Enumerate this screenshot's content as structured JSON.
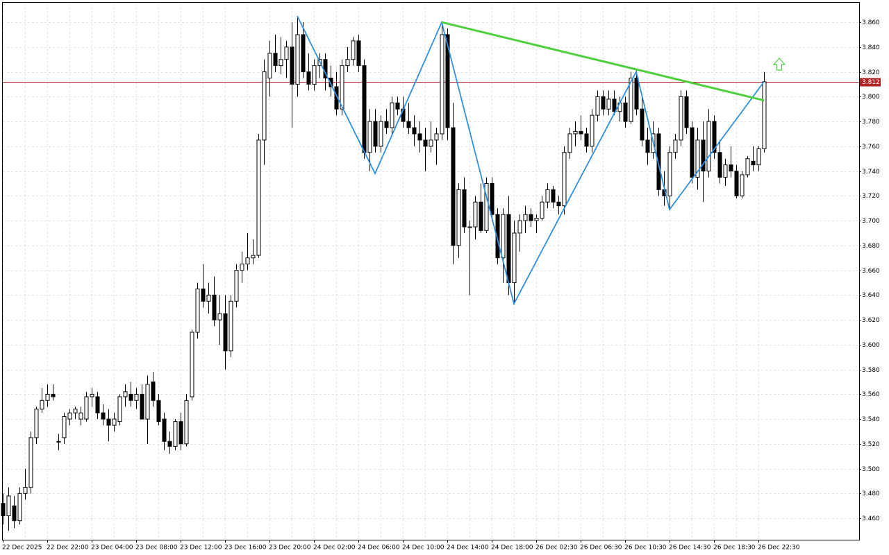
{
  "chart_data": {
    "type": "candlestick",
    "candles": [
      [
        3.472,
        3.48,
        3.455,
        3.462
      ],
      [
        3.462,
        3.485,
        3.45,
        3.478
      ],
      [
        3.47,
        3.478,
        3.452,
        3.458
      ],
      [
        3.458,
        3.485,
        3.455,
        3.48
      ],
      [
        3.48,
        3.5,
        3.475,
        3.485
      ],
      [
        3.485,
        3.53,
        3.48,
        3.525
      ],
      [
        3.525,
        3.55,
        3.52,
        3.548
      ],
      [
        3.548,
        3.565,
        3.545,
        3.555
      ],
      [
        3.555,
        3.568,
        3.55,
        3.56
      ],
      [
        3.56,
        3.568,
        3.555,
        3.558
      ],
      [
        3.522,
        3.528,
        3.515,
        3.522
      ],
      [
        3.525,
        3.545,
        3.52,
        3.542
      ],
      [
        3.54,
        3.548,
        3.535,
        3.545
      ],
      [
        3.545,
        3.55,
        3.54,
        3.548
      ],
      [
        3.54,
        3.55,
        3.535,
        3.545
      ],
      [
        3.54,
        3.562,
        3.538,
        3.558
      ],
      [
        3.558,
        3.565,
        3.55,
        3.56
      ],
      [
        3.558,
        3.562,
        3.54,
        3.545
      ],
      [
        3.545,
        3.552,
        3.535,
        3.54
      ],
      [
        3.54,
        3.548,
        3.522,
        3.535
      ],
      [
        3.535,
        3.545,
        3.53,
        3.54
      ],
      [
        3.538,
        3.56,
        3.535,
        3.558
      ],
      [
        3.558,
        3.568,
        3.55,
        3.562
      ],
      [
        3.56,
        3.57,
        3.55,
        3.555
      ],
      [
        3.555,
        3.565,
        3.548,
        3.56
      ],
      [
        3.56,
        3.568,
        3.54,
        3.54
      ],
      [
        3.54,
        3.575,
        3.52,
        3.568
      ],
      [
        3.57,
        3.578,
        3.55,
        3.555
      ],
      [
        3.555,
        3.56,
        3.535,
        3.538
      ],
      [
        3.54,
        3.545,
        3.515,
        3.522
      ],
      [
        3.522,
        3.53,
        3.512,
        3.518
      ],
      [
        3.518,
        3.54,
        3.515,
        3.538
      ],
      [
        3.538,
        3.545,
        3.515,
        3.52
      ],
      [
        3.52,
        3.56,
        3.518,
        3.555
      ],
      [
        3.558,
        3.612,
        3.555,
        3.61
      ],
      [
        3.61,
        3.65,
        3.605,
        3.645
      ],
      [
        3.645,
        3.665,
        3.63,
        3.635
      ],
      [
        3.635,
        3.65,
        3.625,
        3.64
      ],
      [
        3.64,
        3.655,
        3.615,
        3.62
      ],
      [
        3.62,
        3.64,
        3.6,
        3.625
      ],
      [
        3.625,
        3.64,
        3.58,
        3.595
      ],
      [
        3.595,
        3.64,
        3.59,
        3.635
      ],
      [
        3.635,
        3.665,
        3.63,
        3.66
      ],
      [
        3.66,
        3.675,
        3.65,
        3.665
      ],
      [
        3.665,
        3.69,
        3.66,
        3.67
      ],
      [
        3.67,
        3.685,
        3.665,
        3.672
      ],
      [
        3.672,
        3.77,
        3.67,
        3.765
      ],
      [
        3.765,
        3.83,
        3.745,
        3.82
      ],
      [
        3.815,
        3.845,
        3.8,
        3.835
      ],
      [
        3.835,
        3.85,
        3.82,
        3.825
      ],
      [
        3.825,
        3.848,
        3.818,
        3.83
      ],
      [
        3.83,
        3.845,
        3.815,
        3.84
      ],
      [
        3.84,
        3.86,
        3.775,
        3.81
      ],
      [
        3.81,
        3.865,
        3.8,
        3.85
      ],
      [
        3.85,
        3.86,
        3.815,
        3.82
      ],
      [
        3.82,
        3.835,
        3.805,
        3.81
      ],
      [
        3.81,
        3.83,
        3.805,
        3.825
      ],
      [
        3.825,
        3.835,
        3.815,
        3.83
      ],
      [
        3.83,
        3.835,
        3.805,
        3.815
      ],
      [
        3.815,
        3.825,
        3.8,
        3.808
      ],
      [
        3.808,
        3.82,
        3.785,
        3.79
      ],
      [
        3.79,
        3.83,
        3.785,
        3.825
      ],
      [
        3.825,
        3.84,
        3.82,
        3.83
      ],
      [
        3.83,
        3.848,
        3.825,
        3.845
      ],
      [
        3.845,
        3.85,
        3.82,
        3.825
      ],
      [
        3.825,
        3.83,
        3.75,
        3.755
      ],
      [
        3.755,
        3.79,
        3.74,
        3.78
      ],
      [
        3.78,
        3.79,
        3.755,
        3.76
      ],
      [
        3.76,
        3.785,
        3.755,
        3.78
      ],
      [
        3.78,
        3.79,
        3.77,
        3.775
      ],
      [
        3.775,
        3.8,
        3.77,
        3.795
      ],
      [
        3.795,
        3.8,
        3.785,
        3.79
      ],
      [
        3.79,
        3.8,
        3.775,
        3.78
      ],
      [
        3.78,
        3.795,
        3.77,
        3.775
      ],
      [
        3.775,
        3.785,
        3.76,
        3.77
      ],
      [
        3.77,
        3.78,
        3.755,
        3.765
      ],
      [
        3.765,
        3.775,
        3.74,
        3.76
      ],
      [
        3.76,
        3.78,
        3.755,
        3.765
      ],
      [
        3.765,
        3.775,
        3.745,
        3.77
      ],
      [
        3.77,
        3.86,
        3.765,
        3.85
      ],
      [
        3.85,
        3.855,
        3.765,
        3.775
      ],
      [
        3.775,
        3.795,
        3.665,
        3.68
      ],
      [
        3.68,
        3.73,
        3.67,
        3.725
      ],
      [
        3.725,
        3.735,
        3.69,
        3.695
      ],
      [
        3.695,
        3.7,
        3.64,
        3.695
      ],
      [
        3.695,
        3.72,
        3.685,
        3.715
      ],
      [
        3.715,
        3.73,
        3.69,
        3.692
      ],
      [
        3.692,
        3.735,
        3.69,
        3.73
      ],
      [
        3.73,
        3.735,
        3.7,
        3.705
      ],
      [
        3.705,
        3.71,
        3.665,
        3.67
      ],
      [
        3.67,
        3.71,
        3.65,
        3.705
      ],
      [
        3.705,
        3.72,
        3.64,
        3.65
      ],
      [
        3.65,
        3.7,
        3.633,
        3.69
      ],
      [
        3.69,
        3.705,
        3.675,
        3.7
      ],
      [
        3.7,
        3.712,
        3.69,
        3.705
      ],
      [
        3.705,
        3.71,
        3.695,
        3.7
      ],
      [
        3.7,
        3.705,
        3.69,
        3.702
      ],
      [
        3.702,
        3.72,
        3.7,
        3.715
      ],
      [
        3.715,
        3.73,
        3.71,
        3.725
      ],
      [
        3.725,
        3.728,
        3.71,
        3.715
      ],
      [
        3.715,
        3.72,
        3.705,
        3.712
      ],
      [
        3.712,
        3.76,
        3.705,
        3.755
      ],
      [
        3.755,
        3.775,
        3.75,
        3.77
      ],
      [
        3.77,
        3.78,
        3.76,
        3.772
      ],
      [
        3.772,
        3.785,
        3.765,
        3.77
      ],
      [
        3.77,
        3.775,
        3.755,
        3.76
      ],
      [
        3.76,
        3.79,
        3.755,
        3.785
      ],
      [
        3.785,
        3.805,
        3.78,
        3.8
      ],
      [
        3.8,
        3.805,
        3.785,
        3.79
      ],
      [
        3.79,
        3.805,
        3.785,
        3.798
      ],
      [
        3.798,
        3.805,
        3.785,
        3.788
      ],
      [
        3.788,
        3.8,
        3.78,
        3.795
      ],
      [
        3.795,
        3.8,
        3.775,
        3.78
      ],
      [
        3.78,
        3.82,
        3.778,
        3.815
      ],
      [
        3.815,
        3.822,
        3.785,
        3.79
      ],
      [
        3.79,
        3.8,
        3.76,
        3.765
      ],
      [
        3.765,
        3.775,
        3.745,
        3.755
      ],
      [
        3.755,
        3.78,
        3.75,
        3.77
      ],
      [
        3.77,
        3.775,
        3.72,
        3.725
      ],
      [
        3.725,
        3.74,
        3.712,
        3.72
      ],
      [
        3.72,
        3.76,
        3.709,
        3.755
      ],
      [
        3.755,
        3.77,
        3.75,
        3.765
      ],
      [
        3.765,
        3.805,
        3.76,
        3.8
      ],
      [
        3.8,
        3.805,
        3.77,
        3.775
      ],
      [
        3.775,
        3.78,
        3.73,
        3.735
      ],
      [
        3.735,
        3.775,
        3.725,
        3.765
      ],
      [
        3.765,
        3.78,
        3.715,
        3.74
      ],
      [
        3.74,
        3.79,
        3.735,
        3.78
      ],
      [
        3.78,
        3.785,
        3.75,
        3.755
      ],
      [
        3.755,
        3.765,
        3.73,
        3.735
      ],
      [
        3.735,
        3.75,
        3.728,
        3.745
      ],
      [
        3.745,
        3.76,
        3.735,
        3.74
      ],
      [
        3.74,
        3.745,
        3.718,
        3.72
      ],
      [
        3.72,
        3.74,
        3.718,
        3.737
      ],
      [
        3.737,
        3.752,
        3.735,
        3.75
      ],
      [
        3.748,
        3.76,
        3.74,
        3.745
      ],
      [
        3.745,
        3.76,
        3.74,
        3.758
      ],
      [
        3.758,
        3.82,
        3.755,
        3.812
      ]
    ],
    "categories": [
      "22 Dec 2025",
      null,
      null,
      null,
      null,
      null,
      null,
      null,
      "22 Dec 22:00",
      null,
      null,
      null,
      null,
      null,
      null,
      null,
      "23 Dec 04:00",
      null,
      null,
      null,
      null,
      null,
      null,
      null,
      "23 Dec 08:00",
      null,
      null,
      null,
      null,
      null,
      null,
      null,
      "23 Dec 12:00",
      null,
      null,
      null,
      null,
      null,
      null,
      null,
      "23 Dec 16:00",
      null,
      null,
      null,
      null,
      null,
      null,
      null,
      "23 Dec 20:00",
      null,
      null,
      null,
      null,
      null,
      null,
      null,
      "24 Dec 02:00",
      null,
      null,
      null,
      null,
      null,
      null,
      null,
      "24 Dec 06:00",
      null,
      null,
      null,
      null,
      null,
      null,
      null,
      "24 Dec 10:00",
      null,
      null,
      null,
      null,
      null,
      null,
      null,
      "24 Dec 14:00",
      null,
      null,
      null,
      null,
      null,
      null,
      null,
      "24 Dec 18:00",
      null,
      null,
      null,
      null,
      null,
      null,
      null,
      "26 Dec 02:30",
      null,
      null,
      null,
      null,
      null,
      null,
      null,
      "26 Dec 06:30",
      null,
      null,
      null,
      null,
      null,
      null,
      null,
      "26 Dec 10:30",
      null,
      null,
      null,
      null,
      null,
      null,
      null,
      "26 Dec 14:30",
      null,
      null,
      null,
      null,
      null,
      null,
      null,
      "26 Dec 18:30",
      null,
      null,
      null,
      null,
      null,
      null,
      null,
      "26 Dec 22:30",
      null
    ],
    "ylim": [
      3.4427,
      3.8757
    ],
    "yticks": [
      {
        "value": 3.46,
        "label": "3.460"
      },
      {
        "value": 3.48,
        "label": "3.480"
      },
      {
        "value": 3.5,
        "label": "3.500"
      },
      {
        "value": 3.52,
        "label": "3.520"
      },
      {
        "value": 3.54,
        "label": "3.540"
      },
      {
        "value": 3.56,
        "label": "3.560"
      },
      {
        "value": 3.58,
        "label": "3.580"
      },
      {
        "value": 3.6,
        "label": "3.600"
      },
      {
        "value": 3.62,
        "label": "3.620"
      },
      {
        "value": 3.64,
        "label": "3.640"
      },
      {
        "value": 3.66,
        "label": "3.660"
      },
      {
        "value": 3.68,
        "label": "3.680"
      },
      {
        "value": 3.7,
        "label": "3.700"
      },
      {
        "value": 3.72,
        "label": "3.720"
      },
      {
        "value": 3.74,
        "label": "3.740"
      },
      {
        "value": 3.76,
        "label": "3.760"
      },
      {
        "value": 3.78,
        "label": "3.780"
      },
      {
        "value": 3.8,
        "label": "3.800"
      },
      {
        "value": 3.82,
        "label": "3.820"
      },
      {
        "value": 3.84,
        "label": "3.840"
      },
      {
        "value": 3.86,
        "label": "3.860"
      }
    ],
    "grid": true,
    "current_price": 3.812,
    "price_line_color": "#b22222",
    "zigzag": {
      "color": "#2f8fdf",
      "points": [
        [
          53,
          3.865
        ],
        [
          67,
          3.738
        ],
        [
          79,
          3.86
        ],
        [
          92,
          3.633
        ],
        [
          114,
          3.82
        ],
        [
          120,
          3.709
        ],
        [
          137,
          3.812
        ]
      ]
    },
    "trendline": {
      "color": "#4fcf3f",
      "points": [
        [
          79,
          3.86
        ],
        [
          137,
          3.797
        ]
      ]
    }
  }
}
